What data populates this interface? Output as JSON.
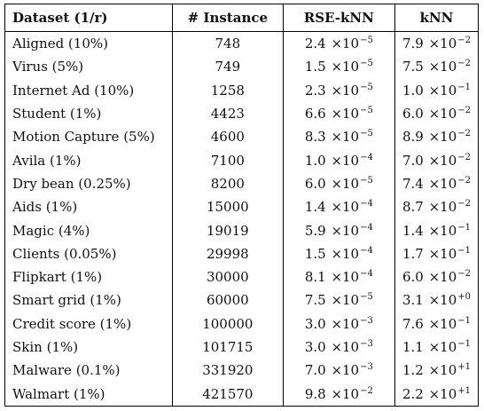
{
  "table": {
    "headers": [
      "Dataset (1/r)",
      "# Instance",
      "RSE-kNN",
      "kNN"
    ],
    "rows": [
      {
        "dataset": "Aligned (10%)",
        "instance": "748",
        "rse": {
          "m": "2.4",
          "e": "−5"
        },
        "knn": {
          "m": "7.9",
          "e": "−2"
        }
      },
      {
        "dataset": "Virus (5%)",
        "instance": "749",
        "rse": {
          "m": "1.5",
          "e": "−5"
        },
        "knn": {
          "m": "7.5",
          "e": "−2"
        }
      },
      {
        "dataset": "Internet Ad (10%)",
        "instance": "1258",
        "rse": {
          "m": "2.3",
          "e": "−5"
        },
        "knn": {
          "m": "1.0",
          "e": "−1"
        }
      },
      {
        "dataset": "Student (1%)",
        "instance": "4423",
        "rse": {
          "m": "6.6",
          "e": "−5"
        },
        "knn": {
          "m": "6.0",
          "e": "−2"
        }
      },
      {
        "dataset": "Motion Capture (5%)",
        "instance": "4600",
        "rse": {
          "m": "8.3",
          "e": "−5"
        },
        "knn": {
          "m": "8.9",
          "e": "−2"
        }
      },
      {
        "dataset": "Avila (1%)",
        "instance": "7100",
        "rse": {
          "m": "1.0",
          "e": "−4"
        },
        "knn": {
          "m": "7.0",
          "e": "−2"
        }
      },
      {
        "dataset": "Dry bean (0.25%)",
        "instance": "8200",
        "rse": {
          "m": "6.0",
          "e": "−5"
        },
        "knn": {
          "m": "7.4",
          "e": "−2"
        }
      },
      {
        "dataset": "Aids (1%)",
        "instance": "15000",
        "rse": {
          "m": "1.4",
          "e": "−4"
        },
        "knn": {
          "m": "8.7",
          "e": "−2"
        }
      },
      {
        "dataset": "Magic (4%)",
        "instance": "19019",
        "rse": {
          "m": "5.9",
          "e": "−4"
        },
        "knn": {
          "m": "1.4",
          "e": "−1"
        }
      },
      {
        "dataset": "Clients (0.05%)",
        "instance": "29998",
        "rse": {
          "m": "1.5",
          "e": "−4"
        },
        "knn": {
          "m": "1.7",
          "e": "−1"
        }
      },
      {
        "dataset": "Flipkart (1%)",
        "instance": "30000",
        "rse": {
          "m": "8.1",
          "e": "−4"
        },
        "knn": {
          "m": "6.0",
          "e": "−2"
        }
      },
      {
        "dataset": "Smart grid (1%)",
        "instance": "60000",
        "rse": {
          "m": "7.5",
          "e": "−5"
        },
        "knn": {
          "m": "3.1",
          "e": "+0"
        }
      },
      {
        "dataset": "Credit score (1%)",
        "instance": "100000",
        "rse": {
          "m": "3.0",
          "e": "−3"
        },
        "knn": {
          "m": "7.6",
          "e": "−1"
        }
      },
      {
        "dataset": "Skin (1%)",
        "instance": "101715",
        "rse": {
          "m": "3.0",
          "e": "−3"
        },
        "knn": {
          "m": "1.1",
          "e": "−1"
        }
      },
      {
        "dataset": "Malware (0.1%)",
        "instance": "331920",
        "rse": {
          "m": "7.0",
          "e": "−3"
        },
        "knn": {
          "m": "1.2",
          "e": "+1"
        }
      },
      {
        "dataset": "Walmart (1%)",
        "instance": "421570",
        "rse": {
          "m": "9.8",
          "e": "−2"
        },
        "knn": {
          "m": "2.2",
          "e": "+1"
        }
      }
    ]
  }
}
